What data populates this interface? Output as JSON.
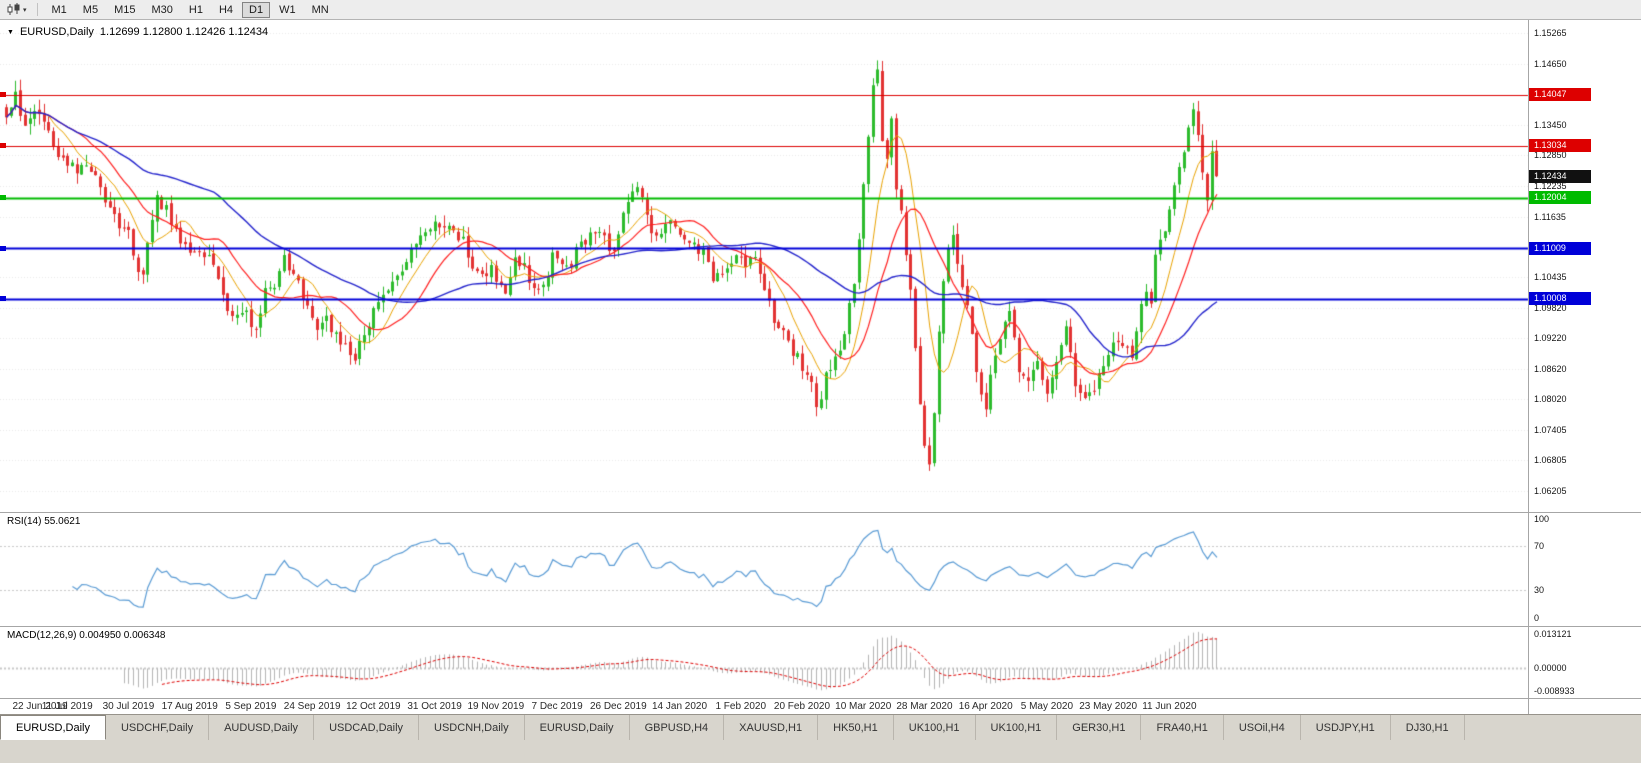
{
  "toolbar": {
    "timeframes": [
      "M1",
      "M5",
      "M15",
      "M30",
      "H1",
      "H4",
      "D1",
      "W1",
      "MN"
    ],
    "active": "D1",
    "chart_type_icon": "candlestick-chart-icon"
  },
  "main_chart": {
    "title": "EURUSD,Daily",
    "ohlc": "1.12699 1.12800 1.12426 1.12434",
    "level_boxes": [
      {
        "price": "1.14047",
        "color": "#dd0000",
        "line": true,
        "line_width": 1,
        "type": "resistance"
      },
      {
        "price": "1.13034",
        "color": "#dd0000",
        "line": true,
        "line_width": 1,
        "type": "resistance"
      },
      {
        "price": "1.12434",
        "color": "#111111",
        "line": false,
        "line_width": 0,
        "type": "current-price"
      },
      {
        "price": "1.12004",
        "color": "#00bb00",
        "line": true,
        "line_width": 2,
        "type": "support"
      },
      {
        "price": "1.11009",
        "color": "#0000d8",
        "line": true,
        "line_width": 2,
        "type": "support"
      },
      {
        "price": "1.10008",
        "color": "#0000d8",
        "line": true,
        "line_width": 2,
        "type": "support"
      }
    ]
  },
  "rsi_panel": {
    "label": "RSI(14) 55.0621",
    "ticks": [
      "100",
      "70",
      "30",
      "0"
    ]
  },
  "macd_panel": {
    "label": "MACD(12,26,9) 0.004950 0.006348",
    "ticks": [
      "0.013121",
      "0.00000",
      "-0.008933"
    ]
  },
  "tabs": {
    "active": 0,
    "items": [
      "EURUSD,Daily",
      "USDCHF,Daily",
      "AUDUSD,Daily",
      "USDCAD,Daily",
      "USDCNH,Daily",
      "EURUSD,Daily",
      "GBPUSD,H4",
      "XAUUSD,H1",
      "HK50,H1",
      "UK100,H1",
      "UK100,H1",
      "GER30,H1",
      "FRA40,H1",
      "USOil,H4",
      "USDJPY,H1",
      "DJ30,H1"
    ]
  },
  "colors": {
    "up_candle": "#2dbb2d",
    "down_candle": "#e23333",
    "ma_fast": "#e8a200",
    "ma_mid": "#ff2020",
    "ma_slow": "#2424cc",
    "rsi_line": "#5a9bd4",
    "macd_hist": "#b5b5b5",
    "macd_signal": "#dd0000",
    "grid": "#e9e9e9"
  },
  "chart_data": {
    "type": "candlestick",
    "symbol": "EURUSD",
    "timeframe": "Daily",
    "bars": 258,
    "price_range": [
      1.0578,
      1.1553
    ],
    "current_price": 1.12434,
    "open_high_low_close": [
      1.12699,
      1.128,
      1.12426,
      1.12434
    ],
    "levels": [
      1.14047,
      1.13034,
      1.12004,
      1.11009,
      1.10008
    ],
    "y_ticks": [
      "1.15265",
      "1.14650",
      "1.13450",
      "1.12850",
      "1.12235",
      "1.11635",
      "1.10435",
      "1.09820",
      "1.09220",
      "1.08620",
      "1.08020",
      "1.07405",
      "1.06805",
      "1.06205"
    ],
    "x_labels": [
      "22 Jun 2019",
      "11 Jul 2019",
      "30 Jul 2019",
      "17 Aug 2019",
      "5 Sep 2019",
      "24 Sep 2019",
      "12 Oct 2019",
      "31 Oct 2019",
      "19 Nov 2019",
      "7 Dec 2019",
      "26 Dec 2019",
      "14 Jan 2020",
      "1 Feb 2020",
      "20 Feb 2020",
      "10 Mar 2020",
      "28 Mar 2020",
      "16 Apr 2020",
      "5 May 2020",
      "23 May 2020",
      "11 Jun 2020"
    ],
    "x_label_bar_step": 13,
    "indicators": {
      "moving_average_periods": [
        8,
        16,
        45
      ],
      "rsi": {
        "period": 14,
        "value": 55.0621,
        "levels": [
          70,
          30
        ]
      },
      "macd": {
        "fast": 12,
        "slow": 26,
        "signal": 9,
        "main_value": 0.00495,
        "signal_value": 0.006348,
        "scale_max": 0.013121,
        "scale_min": -0.008933
      }
    },
    "anchors": [
      [
        0,
        1.136
      ],
      [
        2,
        1.1405
      ],
      [
        4,
        1.1345
      ],
      [
        6,
        1.1375
      ],
      [
        9,
        1.133
      ],
      [
        11,
        1.129
      ],
      [
        13,
        1.127
      ],
      [
        15,
        1.125
      ],
      [
        17,
        1.1275
      ],
      [
        20,
        1.1215
      ],
      [
        22,
        1.118
      ],
      [
        24,
        1.114
      ],
      [
        26,
        1.1135
      ],
      [
        28,
        1.1045
      ],
      [
        29,
        1.104
      ],
      [
        31,
        1.116
      ],
      [
        32,
        1.12
      ],
      [
        34,
        1.1175
      ],
      [
        36,
        1.114
      ],
      [
        38,
        1.1105
      ],
      [
        40,
        1.1095
      ],
      [
        42,
        1.1085
      ],
      [
        44,
        1.1075
      ],
      [
        46,
        1.1
      ],
      [
        48,
        1.097
      ],
      [
        50,
        1.0985
      ],
      [
        53,
        1.094
      ],
      [
        55,
        1.102
      ],
      [
        57,
        1.1035
      ],
      [
        59,
        1.1075
      ],
      [
        61,
        1.105
      ],
      [
        63,
        1.1
      ],
      [
        66,
        1.093
      ],
      [
        68,
        1.0955
      ],
      [
        70,
        1.093
      ],
      [
        72,
        1.0905
      ],
      [
        74,
        1.088
      ],
      [
        76,
        1.094
      ],
      [
        79,
        1.099
      ],
      [
        81,
        1.1025
      ],
      [
        83,
        1.104
      ],
      [
        85,
        1.1075
      ],
      [
        87,
        1.1115
      ],
      [
        89,
        1.1135
      ],
      [
        91,
        1.116
      ],
      [
        93,
        1.115
      ],
      [
        95,
        1.113
      ],
      [
        97,
        1.1115
      ],
      [
        99,
        1.107
      ],
      [
        101,
        1.104
      ],
      [
        103,
        1.106
      ],
      [
        106,
        1.101
      ],
      [
        108,
        1.1075
      ],
      [
        110,
        1.106
      ],
      [
        112,
        1.1015
      ],
      [
        114,
        1.103
      ],
      [
        116,
        1.108
      ],
      [
        119,
        1.106
      ],
      [
        121,
        1.109
      ],
      [
        123,
        1.1115
      ],
      [
        125,
        1.113
      ],
      [
        127,
        1.112
      ],
      [
        129,
        1.109
      ],
      [
        131,
        1.1175
      ],
      [
        132,
        1.12
      ],
      [
        134,
        1.122
      ],
      [
        136,
        1.116
      ],
      [
        138,
        1.112
      ],
      [
        140,
        1.116
      ],
      [
        142,
        1.114
      ],
      [
        144,
        1.1125
      ],
      [
        146,
        1.111
      ],
      [
        148,
        1.109
      ],
      [
        150,
        1.1035
      ],
      [
        152,
        1.106
      ],
      [
        155,
        1.109
      ],
      [
        157,
        1.1075
      ],
      [
        159,
        1.109
      ],
      [
        161,
        1.103
      ],
      [
        163,
        1.0965
      ],
      [
        165,
        1.0945
      ],
      [
        167,
        1.09
      ],
      [
        169,
        1.087
      ],
      [
        171,
        1.0835
      ],
      [
        172,
        1.0785
      ],
      [
        173,
        1.0805
      ],
      [
        174,
        1.085
      ],
      [
        176,
        1.088
      ],
      [
        178,
        1.0935
      ],
      [
        180,
        1.1035
      ],
      [
        181,
        1.113
      ],
      [
        182,
        1.123
      ],
      [
        183,
        1.133
      ],
      [
        184,
        1.142
      ],
      [
        185,
        1.145
      ],
      [
        186,
        1.131
      ],
      [
        187,
        1.128
      ],
      [
        188,
        1.136
      ],
      [
        189,
        1.122
      ],
      [
        190,
        1.1185
      ],
      [
        191,
        1.108
      ],
      [
        192,
        1.102
      ],
      [
        193,
        1.089
      ],
      [
        194,
        1.08
      ],
      [
        195,
        1.072
      ],
      [
        196,
        1.066
      ],
      [
        197,
        1.078
      ],
      [
        198,
        1.093
      ],
      [
        199,
        1.103
      ],
      [
        200,
        1.109
      ],
      [
        201,
        1.114
      ],
      [
        202,
        1.108
      ],
      [
        203,
        1.103
      ],
      [
        204,
        1.099
      ],
      [
        205,
        1.0935
      ],
      [
        206,
        1.086
      ],
      [
        207,
        1.0815
      ],
      [
        208,
        1.079
      ],
      [
        209,
        1.086
      ],
      [
        211,
        1.092
      ],
      [
        213,
        1.0965
      ],
      [
        215,
        1.086
      ],
      [
        217,
        1.084
      ],
      [
        219,
        1.0875
      ],
      [
        221,
        1.082
      ],
      [
        223,
        1.0865
      ],
      [
        225,
        1.095
      ],
      [
        226,
        1.0905
      ],
      [
        227,
        1.084
      ],
      [
        229,
        1.0795
      ],
      [
        231,
        1.081
      ],
      [
        233,
        1.087
      ],
      [
        235,
        1.092
      ],
      [
        237,
        1.0895
      ],
      [
        239,
        1.0895
      ],
      [
        241,
        1.098
      ],
      [
        242,
        1.101
      ],
      [
        243,
        1.1
      ],
      [
        244,
        1.108
      ],
      [
        245,
        1.111
      ],
      [
        246,
        1.1135
      ],
      [
        247,
        1.118
      ],
      [
        248,
        1.1215
      ],
      [
        249,
        1.125
      ],
      [
        250,
        1.13
      ],
      [
        251,
        1.134
      ],
      [
        252,
        1.1375
      ],
      [
        253,
        1.1335
      ],
      [
        254,
        1.124
      ],
      [
        255,
        1.1185
      ],
      [
        256,
        1.13
      ],
      [
        257,
        1.12434
      ]
    ]
  }
}
